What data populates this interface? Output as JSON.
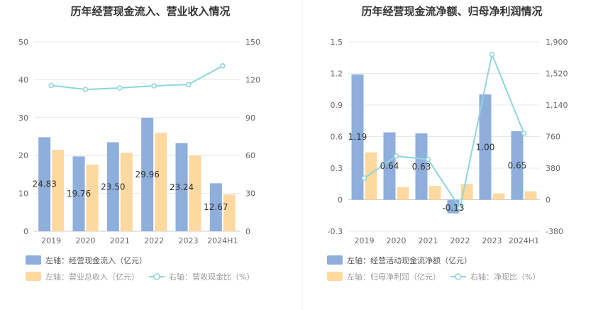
{
  "colors": {
    "bar_primary": "#8eaedc",
    "bar_secondary": "#fdd9a0",
    "line": "#8dd6dc",
    "text": "#333333",
    "axis_text": "#666666",
    "legend_text": "#555555",
    "legend_text_muted": "#999999",
    "grid": "#e8e8e8"
  },
  "chart_data": [
    {
      "type": "bar",
      "title": "历年经营现金流入、营业收入情况",
      "categories": [
        "2019",
        "2020",
        "2021",
        "2022",
        "2023",
        "2024H1"
      ],
      "left_axis": {
        "ticks": [
          "0",
          "10",
          "20",
          "30",
          "40",
          "50"
        ],
        "ylim": [
          0,
          50
        ]
      },
      "right_axis": {
        "ticks": [
          "0",
          "30",
          "60",
          "90",
          "120",
          "150"
        ],
        "ylim": [
          0,
          150
        ]
      },
      "series": [
        {
          "name": "左轴：经营现金流入（亿元）",
          "kind": "bar",
          "axis": "left",
          "color": "#8eaedc",
          "values": [
            24.83,
            19.76,
            23.5,
            29.96,
            23.24,
            12.67
          ],
          "labels": [
            "24.83",
            "19.76",
            "23.50",
            "29.96",
            "23.24",
            "12.67"
          ]
        },
        {
          "name": "左轴：营业总收入（亿元）",
          "kind": "bar",
          "axis": "left",
          "color": "#fdd9a0",
          "values": [
            21.5,
            17.6,
            20.7,
            26.0,
            20.0,
            9.7
          ]
        },
        {
          "name": "右轴：营收现金比（%）",
          "kind": "line",
          "axis": "right",
          "color": "#8dd6dc",
          "values": [
            115.5,
            112.3,
            113.5,
            115.2,
            116.2,
            131.0
          ]
        }
      ],
      "legend": [
        {
          "label": "左轴：经营现金流入（亿元）",
          "kind": "bar",
          "color": "#8eaedc",
          "row": 0
        },
        {
          "label": "左轴：营业总收入（亿元）",
          "kind": "bar",
          "color": "#fdd9a0",
          "row": 1
        },
        {
          "label": "右轴：营收现金比（%）",
          "kind": "line",
          "color": "#8dd6dc",
          "row": 1
        }
      ],
      "grid": true,
      "legend_position": "bottom-left"
    },
    {
      "type": "bar",
      "title": "历年经营现金流净额、归母净利润情况",
      "categories": [
        "2019",
        "2020",
        "2021",
        "2022",
        "2023",
        "2024H1"
      ],
      "left_axis": {
        "ticks": [
          "-0.3",
          "0",
          "0.3",
          "0.6",
          "0.9",
          "1.2",
          "1.5"
        ],
        "ylim": [
          -0.3,
          1.5
        ]
      },
      "right_axis": {
        "ticks": [
          "-380",
          "0",
          "380",
          "760",
          "1,140",
          "1,520",
          "1,900"
        ],
        "ylim": [
          -380,
          1900
        ]
      },
      "series": [
        {
          "name": "左轴：经营活动现金流净额（亿元）",
          "kind": "bar",
          "axis": "left",
          "color": "#8eaedc",
          "values": [
            1.19,
            0.64,
            0.63,
            -0.13,
            1.0,
            0.65
          ],
          "labels": [
            "1.19",
            "0.64",
            "0.63",
            "-0.13",
            "1.00",
            "0.65"
          ]
        },
        {
          "name": "左轴：归母净利润（亿元）",
          "kind": "bar",
          "axis": "left",
          "color": "#fdd9a0",
          "values": [
            0.45,
            0.12,
            0.13,
            0.15,
            0.06,
            0.08
          ]
        },
        {
          "name": "右轴：净现比（%）",
          "kind": "line",
          "axis": "right",
          "color": "#8dd6dc",
          "values": [
            260,
            525,
            485,
            -100,
            1750,
            800
          ]
        }
      ],
      "legend": [
        {
          "label": "左轴：经营活动现金流净额（亿元）",
          "kind": "bar",
          "color": "#8eaedc",
          "row": 0
        },
        {
          "label": "左轴：归母净利润（亿元）",
          "kind": "bar",
          "color": "#fdd9a0",
          "row": 1
        },
        {
          "label": "右轴：净现比（%）",
          "kind": "line",
          "color": "#8dd6dc",
          "row": 1
        }
      ],
      "grid": true,
      "legend_position": "bottom-left"
    }
  ]
}
